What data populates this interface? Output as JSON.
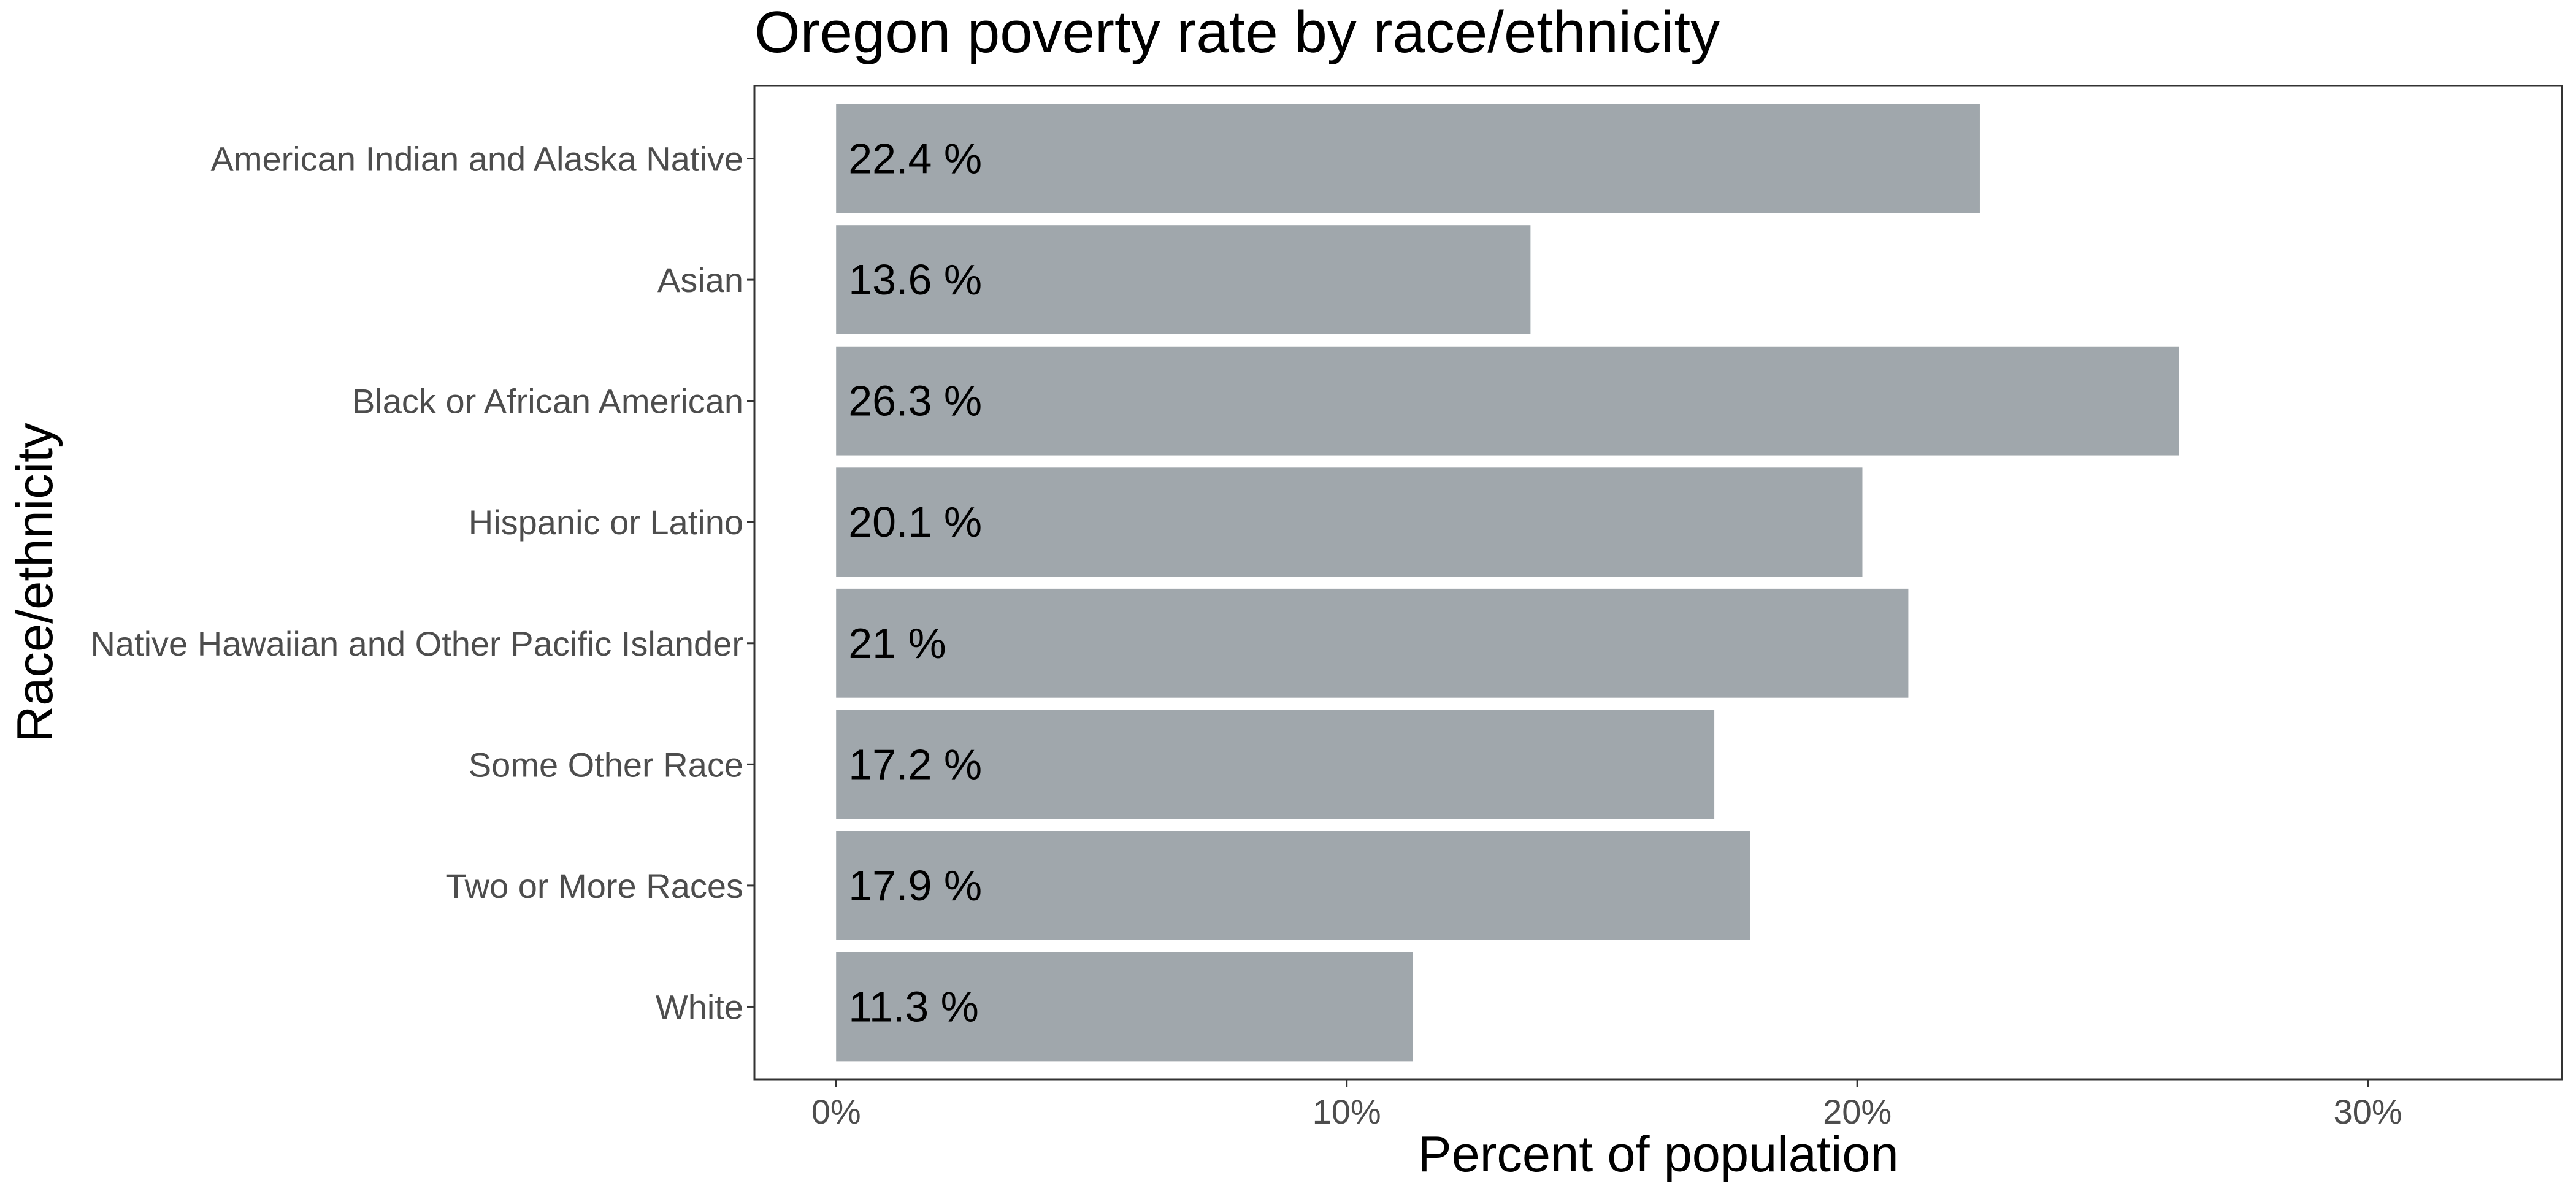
{
  "chart_data": {
    "type": "bar",
    "orientation": "horizontal",
    "title": "Oregon poverty rate by race/ethnicity",
    "xlabel": "Percent of population",
    "ylabel": "Race/ethnicity",
    "categories": [
      "American Indian and Alaska Native",
      "Asian",
      "Black or African American",
      "Hispanic or Latino",
      "Native Hawaiian and Other Pacific Islander",
      "Some Other Race",
      "Two or More Races",
      "White"
    ],
    "values": [
      22.4,
      13.6,
      26.3,
      20.1,
      21,
      17.2,
      17.9,
      11.3
    ],
    "data_labels": [
      "22.4 %",
      "13.6 %",
      "26.3 %",
      "20.1 %",
      "21 %",
      "17.2 %",
      "17.9 %",
      "11.3 %"
    ],
    "xticks": [
      0,
      10,
      20,
      30
    ],
    "xtick_labels": [
      "0%",
      "10%",
      "20%",
      "30%"
    ],
    "xlim": [
      -1.6,
      33.8
    ],
    "grid": false,
    "legend": "none",
    "bar_color": "#a0a7ac"
  }
}
